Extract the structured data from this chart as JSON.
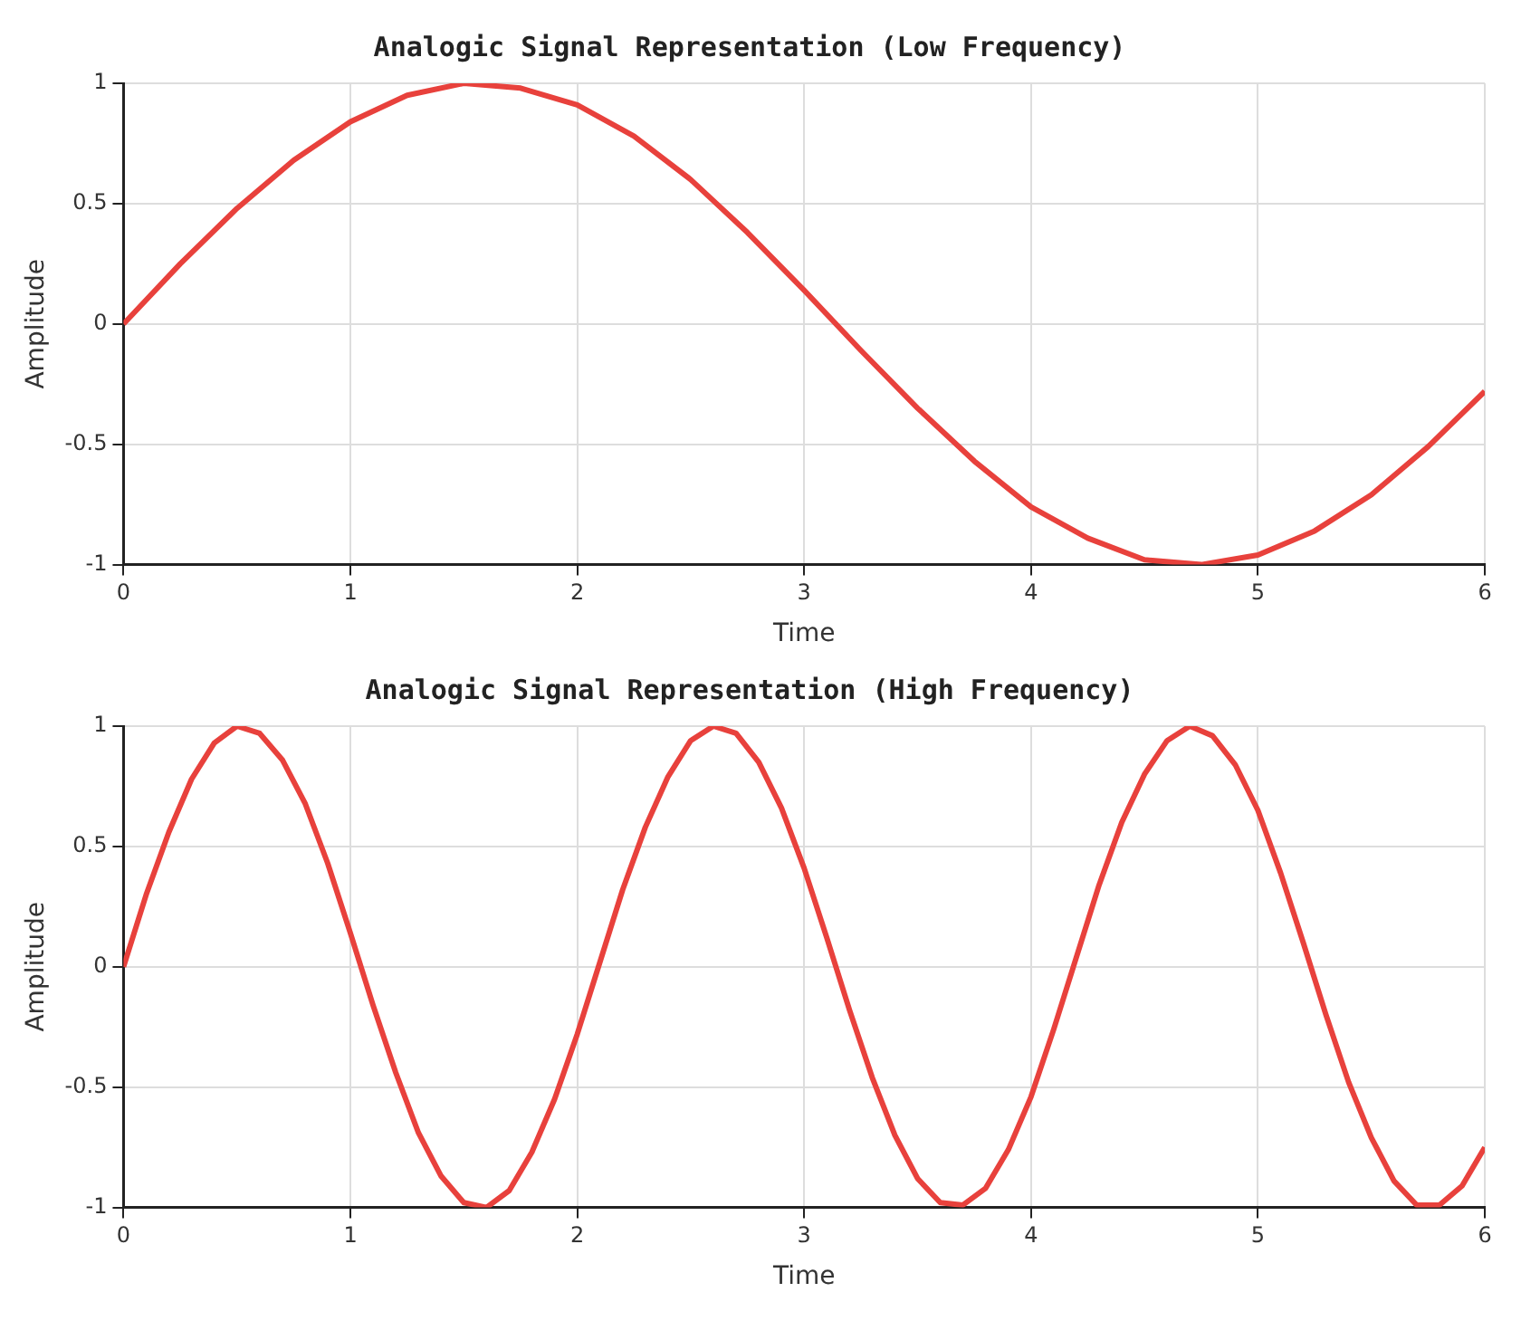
{
  "chart_data": [
    {
      "type": "line",
      "title": "Analogic Signal Representation (Low Frequency)",
      "xlabel": "Time",
      "ylabel": "Amplitude",
      "xlim": [
        0,
        6
      ],
      "xticks": [
        0,
        1,
        2,
        3,
        4,
        5,
        6
      ],
      "ylim": [
        -1,
        1
      ],
      "yticks": [
        -1,
        -0.5,
        0,
        0.5,
        1
      ],
      "grid": true,
      "legend": false,
      "marker": "none",
      "line_style": "solid",
      "x": [
        0,
        0.25,
        0.5,
        0.75,
        1,
        1.25,
        1.5,
        1.75,
        2,
        2.25,
        2.5,
        2.75,
        3,
        3.25,
        3.5,
        3.75,
        4,
        4.25,
        4.5,
        4.75,
        5,
        5.25,
        5.5,
        5.75,
        6
      ],
      "series": [
        {
          "color": "#e8413c",
          "values": [
            0,
            0.25,
            0.48,
            0.68,
            0.84,
            0.95,
            1.0,
            0.98,
            0.91,
            0.78,
            0.6,
            0.38,
            0.14,
            -0.11,
            -0.35,
            -0.57,
            -0.76,
            -0.89,
            -0.98,
            -1.0,
            -0.96,
            -0.86,
            -0.71,
            -0.51,
            -0.28
          ]
        }
      ]
    },
    {
      "type": "line",
      "title": "Analogic Signal Representation (High Frequency)",
      "xlabel": "Time",
      "ylabel": "Amplitude",
      "xlim": [
        0,
        6
      ],
      "xticks": [
        0,
        1,
        2,
        3,
        4,
        5,
        6
      ],
      "ylim": [
        -1,
        1
      ],
      "yticks": [
        -1,
        -0.5,
        0,
        0.5,
        1
      ],
      "grid": true,
      "legend": false,
      "marker": "none",
      "line_style": "solid",
      "x": [
        0,
        0.1,
        0.2,
        0.3,
        0.4,
        0.5,
        0.6,
        0.7,
        0.8,
        0.9,
        1.0,
        1.1,
        1.2,
        1.3,
        1.4,
        1.5,
        1.6,
        1.7,
        1.8,
        1.9,
        2.0,
        2.1,
        2.2,
        2.3,
        2.4,
        2.5,
        2.6,
        2.7,
        2.8,
        2.9,
        3.0,
        3.1,
        3.2,
        3.3,
        3.4,
        3.5,
        3.6,
        3.7,
        3.8,
        3.9,
        4.0,
        4.1,
        4.2,
        4.3,
        4.4,
        4.5,
        4.6,
        4.7,
        4.8,
        4.9,
        5.0,
        5.1,
        5.2,
        5.3,
        5.4,
        5.5,
        5.6,
        5.7,
        5.8,
        5.9,
        6.0
      ],
      "series": [
        {
          "color": "#e8413c",
          "values": [
            0,
            0.3,
            0.56,
            0.78,
            0.93,
            1.0,
            0.97,
            0.86,
            0.68,
            0.43,
            0.14,
            -0.16,
            -0.44,
            -0.69,
            -0.87,
            -0.98,
            -1.0,
            -0.93,
            -0.77,
            -0.55,
            -0.28,
            0.02,
            0.32,
            0.58,
            0.79,
            0.94,
            1.0,
            0.97,
            0.85,
            0.66,
            0.41,
            0.12,
            -0.18,
            -0.46,
            -0.7,
            -0.88,
            -0.98,
            -0.99,
            -0.92,
            -0.76,
            -0.54,
            -0.26,
            0.04,
            0.34,
            0.6,
            0.8,
            0.94,
            1.0,
            0.96,
            0.84,
            0.65,
            0.39,
            0.1,
            -0.2,
            -0.48,
            -0.71,
            -0.89,
            -0.99,
            -0.99,
            -0.91,
            -0.75
          ]
        }
      ]
    }
  ]
}
